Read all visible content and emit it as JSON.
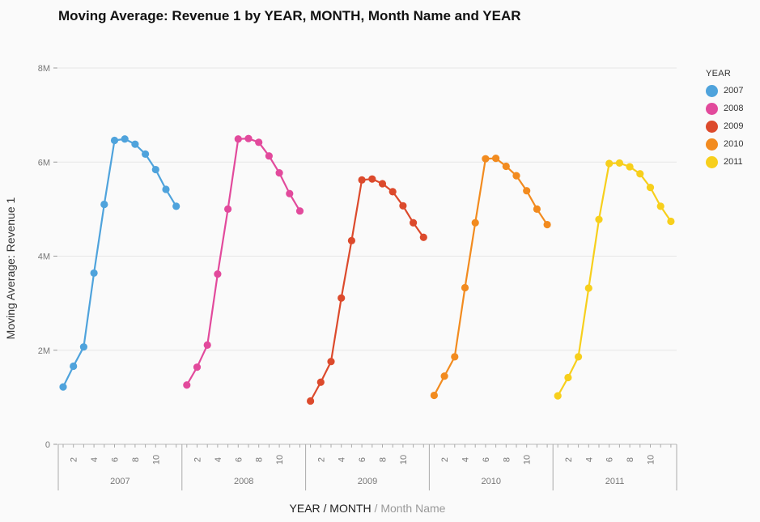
{
  "title": "Moving Average: Revenue 1 by YEAR, MONTH, Month Name and YEAR",
  "x_axis_title": {
    "main": "YEAR / MONTH",
    "sep": " / ",
    "sub": "Month Name"
  },
  "legend": {
    "title": "YEAR"
  },
  "chart_data": {
    "type": "line",
    "title": "Moving Average: Revenue 1 by YEAR, MONTH, Month Name and YEAR",
    "xlabel": "YEAR / MONTH / Month Name",
    "ylabel": "Moving Average: Revenue 1",
    "ylim": [
      0,
      8000000
    ],
    "y_ticks": [
      0,
      2000000,
      4000000,
      6000000,
      8000000
    ],
    "y_tick_labels": [
      "0",
      "2M",
      "4M",
      "6M",
      "8M"
    ],
    "x_months": [
      1,
      2,
      3,
      4,
      5,
      6,
      7,
      8,
      9,
      10,
      11,
      12
    ],
    "x_month_tick_labels": [
      "2",
      "4",
      "6",
      "8",
      "10"
    ],
    "grid": true,
    "legend_position": "right",
    "series": [
      {
        "name": "2007",
        "color": "#4fa3dc",
        "values": [
          1220000,
          1660000,
          2070000,
          3640000,
          5100000,
          6460000,
          6490000,
          6380000,
          6170000,
          5840000,
          5420000,
          5060000
        ]
      },
      {
        "name": "2008",
        "color": "#e24a9c",
        "values": [
          1260000,
          1640000,
          2110000,
          3620000,
          5000000,
          6490000,
          6500000,
          6420000,
          6130000,
          5770000,
          5330000,
          4960000
        ]
      },
      {
        "name": "2009",
        "color": "#dc4a2c",
        "values": [
          920000,
          1320000,
          1760000,
          3110000,
          4330000,
          5620000,
          5640000,
          5540000,
          5370000,
          5070000,
          4710000,
          4400000
        ]
      },
      {
        "name": "2010",
        "color": "#f28b1f",
        "values": [
          1040000,
          1450000,
          1860000,
          3330000,
          4710000,
          6070000,
          6080000,
          5910000,
          5710000,
          5390000,
          5000000,
          4670000
        ]
      },
      {
        "name": "2011",
        "color": "#f7cf1c",
        "values": [
          1030000,
          1420000,
          1860000,
          3320000,
          4780000,
          5970000,
          5980000,
          5900000,
          5750000,
          5460000,
          5060000,
          4740000
        ]
      }
    ]
  }
}
